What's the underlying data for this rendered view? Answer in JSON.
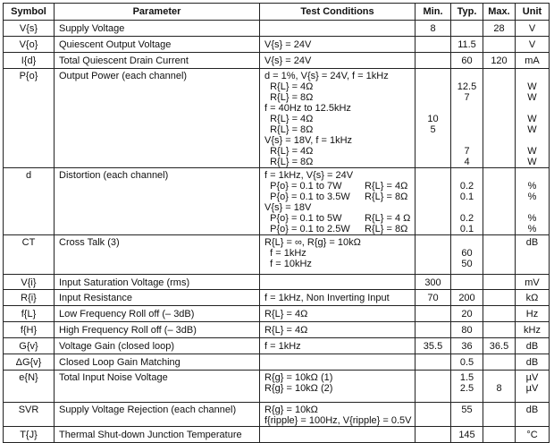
{
  "headers": [
    "Symbol",
    "Parameter",
    "Test Conditions",
    "Min.",
    "Typ.",
    "Max.",
    "Unit"
  ],
  "rows": [
    {
      "h": 18,
      "symbol": [
        "V{s}"
      ],
      "parameter": [
        "Supply Voltage"
      ],
      "conditions": [
        ""
      ],
      "min": [
        "8"
      ],
      "typ": [
        ""
      ],
      "max": [
        "28"
      ],
      "unit": [
        "V"
      ]
    },
    {
      "h": 18,
      "symbol": [
        "V{o}"
      ],
      "parameter": [
        "Quiescent Output Voltage"
      ],
      "conditions": [
        "V{s} = 24V"
      ],
      "min": [
        ""
      ],
      "typ": [
        "11.5"
      ],
      "max": [
        ""
      ],
      "unit": [
        "V"
      ]
    },
    {
      "h": 18,
      "symbol": [
        "I{d}"
      ],
      "parameter": [
        "Total Quiescent Drain Current"
      ],
      "conditions": [
        "V{s} = 24V"
      ],
      "min": [
        ""
      ],
      "typ": [
        "60"
      ],
      "max": [
        "120"
      ],
      "unit": [
        "mA"
      ]
    },
    {
      "h": 111,
      "symbol": [
        "P{o}"
      ],
      "parameter": [
        "Output Power (each channel)"
      ],
      "conditions": [
        "d = 1%, V{s} = 24V, f = 1kHz",
        "  R{L} = 4Ω",
        "  R{L} = 8Ω",
        "f = 40Hz to 12.5kHz",
        "  R{L} = 4Ω",
        "  R{L} = 8Ω",
        "V{s} = 18V, f = 1kHz",
        "  R{L} = 4Ω",
        "  R{L} = 8Ω"
      ],
      "min": [
        "",
        "",
        "",
        "",
        "10",
        "5",
        "",
        "",
        ""
      ],
      "typ": [
        "",
        "12.5",
        "7",
        "",
        "",
        "",
        "",
        "7",
        "4"
      ],
      "max": [
        ""
      ],
      "unit": [
        "",
        "W",
        "W",
        "",
        "W",
        "W",
        "",
        "W",
        "W"
      ]
    },
    {
      "h": 74,
      "symbol": [
        "d"
      ],
      "parameter": [
        "Distortion (each channel)"
      ],
      "conditions": [
        "f = 1kHz, V{s} = 24V",
        [
          "  P{o} = 0.1 to 7W",
          "R{L} = 4Ω"
        ],
        [
          "  P{o} = 0.1 to 3.5W",
          "R{L} = 8Ω"
        ],
        "V{s} = 18V",
        [
          "  P{o} = 0.1 to 5W",
          "R{L} = 4 Ω"
        ],
        [
          "  P{o} = 0.1 to 2.5W",
          "R{L} = 8Ω"
        ]
      ],
      "min": [
        ""
      ],
      "typ": [
        "",
        "0.2",
        "0.1",
        "",
        "0.2",
        "0.1"
      ],
      "max": [
        ""
      ],
      "unit": [
        "",
        "%",
        "%",
        "",
        "%",
        "%"
      ]
    },
    {
      "h": 44,
      "symbol": [
        "CT"
      ],
      "parameter": [
        "Cross Talk (3)"
      ],
      "conditions": [
        "R{L} = ∞, R{g} = 10kΩ",
        "  f = 1kHz",
        "  f = 10kHz"
      ],
      "min": [
        ""
      ],
      "typ": [
        "",
        "60",
        "50"
      ],
      "max": [
        ""
      ],
      "unit": [
        "dB"
      ]
    },
    {
      "h": 17,
      "symbol": [
        "V{i}"
      ],
      "parameter": [
        "Input Saturation Voltage (rms)"
      ],
      "conditions": [
        ""
      ],
      "min": [
        "300"
      ],
      "typ": [
        ""
      ],
      "max": [
        ""
      ],
      "unit": [
        "mV"
      ]
    },
    {
      "h": 18,
      "symbol": [
        "R{i}"
      ],
      "parameter": [
        "Input Resistance"
      ],
      "conditions": [
        "f = 1kHz, Non Inverting Input"
      ],
      "min": [
        "70"
      ],
      "typ": [
        "200"
      ],
      "max": [
        ""
      ],
      "unit": [
        "kΩ"
      ]
    },
    {
      "h": 18,
      "symbol": [
        "f{L}"
      ],
      "parameter": [
        "Low Frequency Roll off (– 3dB)"
      ],
      "conditions": [
        "R{L} = 4Ω"
      ],
      "min": [
        ""
      ],
      "typ": [
        "20"
      ],
      "max": [
        ""
      ],
      "unit": [
        "Hz"
      ]
    },
    {
      "h": 18,
      "symbol": [
        "f{H}"
      ],
      "parameter": [
        "High Frequency Roll off (– 3dB)"
      ],
      "conditions": [
        "R{L} = 4Ω"
      ],
      "min": [
        ""
      ],
      "typ": [
        "80"
      ],
      "max": [
        ""
      ],
      "unit": [
        "kHz"
      ]
    },
    {
      "h": 18,
      "symbol": [
        "G{v}"
      ],
      "parameter": [
        "Voltage Gain (closed loop)"
      ],
      "conditions": [
        "f = 1kHz"
      ],
      "min": [
        "35.5"
      ],
      "typ": [
        "36"
      ],
      "max": [
        "36.5"
      ],
      "unit": [
        "dB"
      ]
    },
    {
      "h": 18,
      "symbol": [
        "ΔG{v}"
      ],
      "parameter": [
        "Closed Loop Gain Matching"
      ],
      "conditions": [
        ""
      ],
      "min": [
        ""
      ],
      "typ": [
        "0.5"
      ],
      "max": [
        ""
      ],
      "unit": [
        "dB"
      ]
    },
    {
      "h": 36,
      "symbol": [
        "e{N}"
      ],
      "parameter": [
        "Total Input Noise Voltage"
      ],
      "conditions": [
        "R{g} = 10kΩ (1)",
        "R{g} = 10kΩ (2)"
      ],
      "min": [
        ""
      ],
      "typ": [
        "1.5",
        "2.5"
      ],
      "max": [
        "",
        "8"
      ],
      "unit": [
        "µV",
        "µV"
      ]
    },
    {
      "h": 24,
      "symbol": [
        "SVR"
      ],
      "parameter": [
        "Supply Voltage Rejection (each channel)"
      ],
      "conditions": [
        "R{g} = 10kΩ",
        "f{ripple} = 100Hz, V{ripple} = 0.5V"
      ],
      "min": [
        ""
      ],
      "typ": [
        "55"
      ],
      "max": [
        ""
      ],
      "unit": [
        "dB"
      ]
    },
    {
      "h": 18,
      "symbol": [
        "T{J}"
      ],
      "parameter": [
        "Thermal Shut-down Junction Temperature"
      ],
      "conditions": [
        ""
      ],
      "min": [
        ""
      ],
      "typ": [
        "145"
      ],
      "max": [
        ""
      ],
      "unit": [
        "°C"
      ]
    }
  ]
}
